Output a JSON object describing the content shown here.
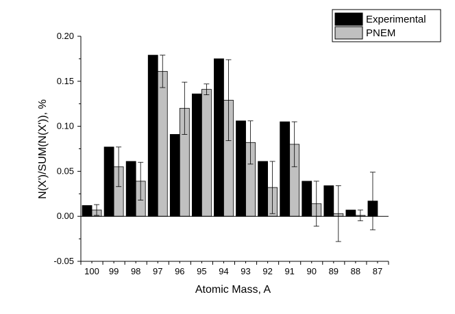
{
  "chart_data": {
    "type": "bar",
    "xlabel": "Atomic Mass, A",
    "ylabel": "N(X')/SUM(N(X')), %",
    "ylim": [
      -0.05,
      0.2
    ],
    "yticks": [
      "-0.05",
      "0.00",
      "0.05",
      "0.10",
      "0.15",
      "0.20"
    ],
    "categories": [
      "100",
      "99",
      "98",
      "97",
      "96",
      "95",
      "94",
      "93",
      "92",
      "91",
      "90",
      "89",
      "88",
      "87"
    ],
    "legend_position": "top-right",
    "series": [
      {
        "name": "Experimental",
        "color": "#000000",
        "values": [
          0.012,
          0.077,
          0.061,
          0.179,
          0.091,
          0.136,
          0.175,
          0.106,
          0.061,
          0.105,
          0.039,
          0.034,
          0.007,
          0.017
        ],
        "errors": [
          null,
          null,
          null,
          null,
          null,
          null,
          null,
          null,
          null,
          null,
          null,
          null,
          null,
          0.032
        ]
      },
      {
        "name": "PNEM",
        "color": "#c0c0c0",
        "values": [
          0.007,
          0.055,
          0.039,
          0.161,
          0.12,
          0.141,
          0.129,
          0.082,
          0.032,
          0.08,
          0.014,
          0.003,
          0.001,
          null
        ],
        "errors": [
          0.006,
          0.022,
          0.021,
          0.018,
          0.029,
          0.006,
          0.045,
          0.024,
          0.029,
          0.025,
          0.025,
          0.031,
          0.006,
          null
        ]
      }
    ]
  }
}
